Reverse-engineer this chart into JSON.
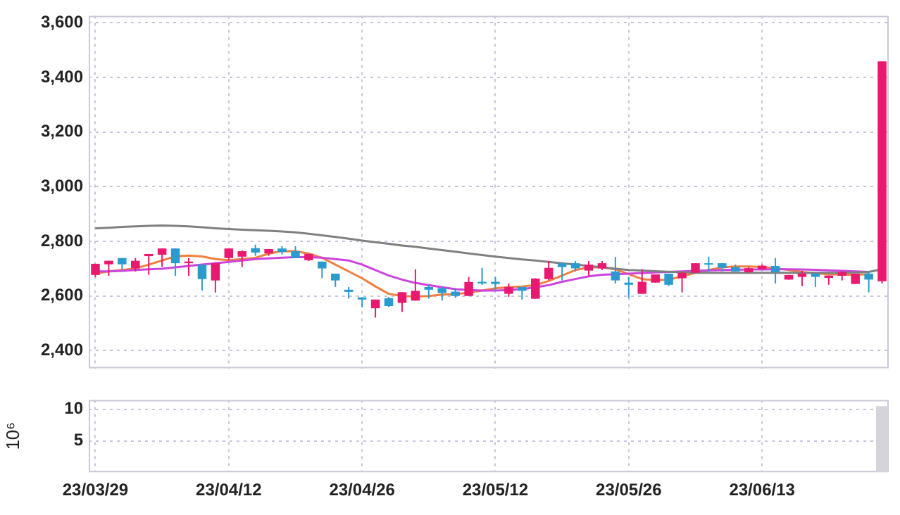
{
  "chart_data": [
    {
      "type": "candlestick",
      "categories": [
        null,
        null,
        null,
        null,
        null,
        null,
        null,
        null,
        null,
        null,
        null,
        null,
        null,
        null,
        null,
        null,
        null,
        null,
        null,
        null,
        null,
        null,
        null,
        null,
        null,
        null,
        null,
        null,
        null,
        null,
        null,
        null,
        null,
        null,
        null,
        null,
        null,
        null,
        null,
        null,
        null,
        null,
        null,
        null,
        null,
        null,
        null,
        null,
        null,
        null,
        null,
        null,
        null,
        null,
        null,
        null,
        null,
        null,
        null,
        null
      ],
      "ohlc": [
        [
          2677,
          2718,
          2669,
          2718
        ],
        [
          2716,
          2729,
          2674,
          2729
        ],
        [
          2739,
          2739,
          2698,
          2716
        ],
        [
          2701,
          2739,
          2690,
          2729
        ],
        [
          2746,
          2754,
          2678,
          2754
        ],
        [
          2751,
          2774,
          2706,
          2774
        ],
        [
          2774,
          2774,
          2674,
          2720
        ],
        [
          2720,
          2739,
          2674,
          2726
        ],
        [
          2715,
          2715,
          2620,
          2662
        ],
        [
          2657,
          2723,
          2613,
          2720
        ],
        [
          2739,
          2774,
          2731,
          2774
        ],
        [
          2744,
          2767,
          2706,
          2764
        ],
        [
          2775,
          2788,
          2747,
          2759
        ],
        [
          2756,
          2772,
          2747,
          2772
        ],
        [
          2774,
          2782,
          2752,
          2761
        ],
        [
          2764,
          2782,
          2739,
          2739
        ],
        [
          2731,
          2754,
          2728,
          2754
        ],
        [
          2726,
          2726,
          2665,
          2701
        ],
        [
          2682,
          2682,
          2633,
          2657
        ],
        [
          2623,
          2633,
          2590,
          2615
        ],
        [
          2595,
          2595,
          2559,
          2587
        ],
        [
          2555,
          2587,
          2521,
          2587
        ],
        [
          2592,
          2597,
          2560,
          2563
        ],
        [
          2575,
          2614,
          2542,
          2614
        ],
        [
          2583,
          2698,
          2583,
          2619
        ],
        [
          2633,
          2641,
          2590,
          2623
        ],
        [
          2629,
          2634,
          2583,
          2611
        ],
        [
          2616,
          2629,
          2593,
          2600
        ],
        [
          2600,
          2669,
          2600,
          2651
        ],
        [
          2652,
          2703,
          2641,
          2646
        ],
        [
          2652,
          2669,
          2620,
          2644
        ],
        [
          2608,
          2646,
          2597,
          2633
        ],
        [
          2633,
          2633,
          2587,
          2619
        ],
        [
          2590,
          2665,
          2590,
          2664
        ],
        [
          2662,
          2728,
          2657,
          2703
        ],
        [
          2720,
          2720,
          2657,
          2706
        ],
        [
          2720,
          2728,
          2690,
          2701
        ],
        [
          2693,
          2728,
          2674,
          2715
        ],
        [
          2701,
          2728,
          2695,
          2720
        ],
        [
          2690,
          2743,
          2646,
          2657
        ],
        [
          2649,
          2669,
          2593,
          2641
        ],
        [
          2608,
          2698,
          2608,
          2652
        ],
        [
          2649,
          2679,
          2649,
          2679
        ],
        [
          2682,
          2682,
          2637,
          2641
        ],
        [
          2665,
          2687,
          2613,
          2685
        ],
        [
          2685,
          2720,
          2685,
          2720
        ],
        [
          2720,
          2744,
          2690,
          2715
        ],
        [
          2720,
          2720,
          2690,
          2703
        ],
        [
          2706,
          2715,
          2690,
          2690
        ],
        [
          2687,
          2706,
          2685,
          2702
        ],
        [
          2698,
          2715,
          2698,
          2711
        ],
        [
          2710,
          2739,
          2646,
          2687
        ],
        [
          2660,
          2677,
          2660,
          2677
        ],
        [
          2670,
          2693,
          2636,
          2682
        ],
        [
          2682,
          2682,
          2633,
          2670
        ],
        [
          2666,
          2675,
          2641,
          2675
        ],
        [
          2674,
          2690,
          2657,
          2688
        ],
        [
          2644,
          2682,
          2644,
          2682
        ],
        [
          2682,
          2690,
          2613,
          2660
        ],
        [
          2654,
          3459,
          2646,
          3459
        ]
      ],
      "colors": [
        "#e8196e",
        "#e8196e",
        "#2b9bcf",
        "#e8196e",
        "#e8196e",
        "#e8196e",
        "#2b9bcf",
        "#e8196e",
        "#2b9bcf",
        "#e8196e",
        "#e8196e",
        "#e8196e",
        "#2b9bcf",
        "#e8196e",
        "#2b9bcf",
        "#2b9bcf",
        "#e8196e",
        "#2b9bcf",
        "#2b9bcf",
        "#2b9bcf",
        "#2b9bcf",
        "#e8196e",
        "#2b9bcf",
        "#e8196e",
        "#e8196e",
        "#2b9bcf",
        "#2b9bcf",
        "#2b9bcf",
        "#e8196e",
        "#2b9bcf",
        "#2b9bcf",
        "#e8196e",
        "#2b9bcf",
        "#e8196e",
        "#e8196e",
        "#2b9bcf",
        "#2b9bcf",
        "#e8196e",
        "#e8196e",
        "#2b9bcf",
        "#2b9bcf",
        "#e8196e",
        "#e8196e",
        "#2b9bcf",
        "#e8196e",
        "#e8196e",
        "#2b9bcf",
        "#2b9bcf",
        "#2b9bcf",
        "#e8196e",
        "#e8196e",
        "#2b9bcf",
        "#e8196e",
        "#e8196e",
        "#2b9bcf",
        "#e8196e",
        "#e8196e",
        "#e8196e",
        "#2b9bcf",
        "#e8196e"
      ],
      "series": [
        {
          "type": "line",
          "color": "#808080",
          "values": [
            2848,
            2850,
            2853,
            2855,
            2857,
            2858,
            2857,
            2855,
            2852,
            2848,
            2845,
            2843,
            2841,
            2839,
            2836,
            2833,
            2828,
            2822,
            2816,
            2810,
            2803,
            2797,
            2791,
            2785,
            2780,
            2774,
            2768,
            2762,
            2756,
            2750,
            2744,
            2739,
            2734,
            2730,
            2725,
            2720,
            2715,
            2710,
            2705,
            2700,
            2695,
            2693,
            2691,
            2689,
            2687,
            2685,
            2685,
            2685,
            2685,
            2685,
            2685,
            2685,
            2685,
            2685,
            2685,
            2685,
            2685,
            2686,
            2688,
            2698
          ]
        },
        {
          "type": "line",
          "color": "#cc44dd",
          "values": [
            2690,
            2690,
            2692,
            2695,
            2698,
            2700,
            2705,
            2710,
            2715,
            2720,
            2725,
            2730,
            2735,
            2738,
            2740,
            2742,
            2742,
            2740,
            2735,
            2730,
            2715,
            2695,
            2675,
            2660,
            2648,
            2640,
            2632,
            2625,
            2622,
            2620,
            2620,
            2622,
            2625,
            2632,
            2640,
            2652,
            2662,
            2672,
            2678,
            2680,
            2682,
            2684,
            2686,
            2688,
            2690,
            2692,
            2694,
            2695,
            2696,
            2697,
            2697,
            2698,
            2698,
            2697,
            2696,
            2694,
            2692,
            2690,
            2688,
            null
          ]
        },
        {
          "type": "line",
          "color": "#f08040",
          "values": [
            2682,
            2690,
            2695,
            2701,
            2715,
            2730,
            2745,
            2748,
            2745,
            2735,
            2731,
            2735,
            2740,
            2755,
            2765,
            2764,
            2755,
            2740,
            2715,
            2690,
            2665,
            2635,
            2608,
            2600,
            2598,
            2600,
            2605,
            2607,
            2612,
            2620,
            2628,
            2632,
            2635,
            2640,
            2655,
            2675,
            2695,
            2705,
            2705,
            2698,
            2680,
            2662,
            2658,
            2660,
            2672,
            2685,
            2695,
            2705,
            2708,
            2708,
            2706,
            2702,
            2695,
            2688,
            2683,
            2680,
            2678,
            2678,
            2680,
            null
          ]
        }
      ],
      "ylim": [
        2335,
        3626
      ],
      "yticks": [
        {
          "value": 2400,
          "label": "2,400"
        },
        {
          "value": 2600,
          "label": "2,600"
        },
        {
          "value": 2800,
          "label": "2,800"
        },
        {
          "value": 3000,
          "label": "3,000"
        },
        {
          "value": 3200,
          "label": "3,200"
        },
        {
          "value": 3400,
          "label": "3,400"
        },
        {
          "value": 3600,
          "label": "3,600"
        }
      ],
      "grid": true,
      "legend": false,
      "marker": "none",
      "tick_labels": "y"
    },
    {
      "type": "bar",
      "categories": [
        "23/03/29",
        null,
        null,
        null,
        null,
        null,
        null,
        null,
        null,
        null,
        "23/04/12",
        null,
        null,
        null,
        null,
        null,
        null,
        null,
        null,
        null,
        "23/04/26",
        null,
        null,
        null,
        null,
        null,
        null,
        null,
        null,
        null,
        "23/05/12",
        null,
        null,
        null,
        null,
        null,
        null,
        null,
        null,
        null,
        "23/05/26",
        null,
        null,
        null,
        null,
        null,
        null,
        null,
        null,
        null,
        "23/06/13",
        null,
        null,
        null,
        null,
        null,
        null,
        null,
        null,
        null
      ],
      "values": [
        null,
        null,
        null,
        null,
        null,
        null,
        null,
        null,
        null,
        null,
        null,
        null,
        null,
        null,
        null,
        null,
        null,
        null,
        null,
        null,
        null,
        null,
        null,
        null,
        null,
        null,
        null,
        null,
        null,
        null,
        null,
        null,
        null,
        null,
        null,
        null,
        null,
        null,
        null,
        null,
        null,
        null,
        null,
        null,
        null,
        null,
        null,
        null,
        null,
        null,
        null,
        null,
        null,
        null,
        null,
        null,
        null,
        null,
        null,
        10.5
      ],
      "color": "#d4d4da",
      "ylabel": "10⁶",
      "ylim": [
        0,
        11.5
      ],
      "yticks": [
        5,
        10
      ],
      "grid": true,
      "legend": false
    }
  ]
}
